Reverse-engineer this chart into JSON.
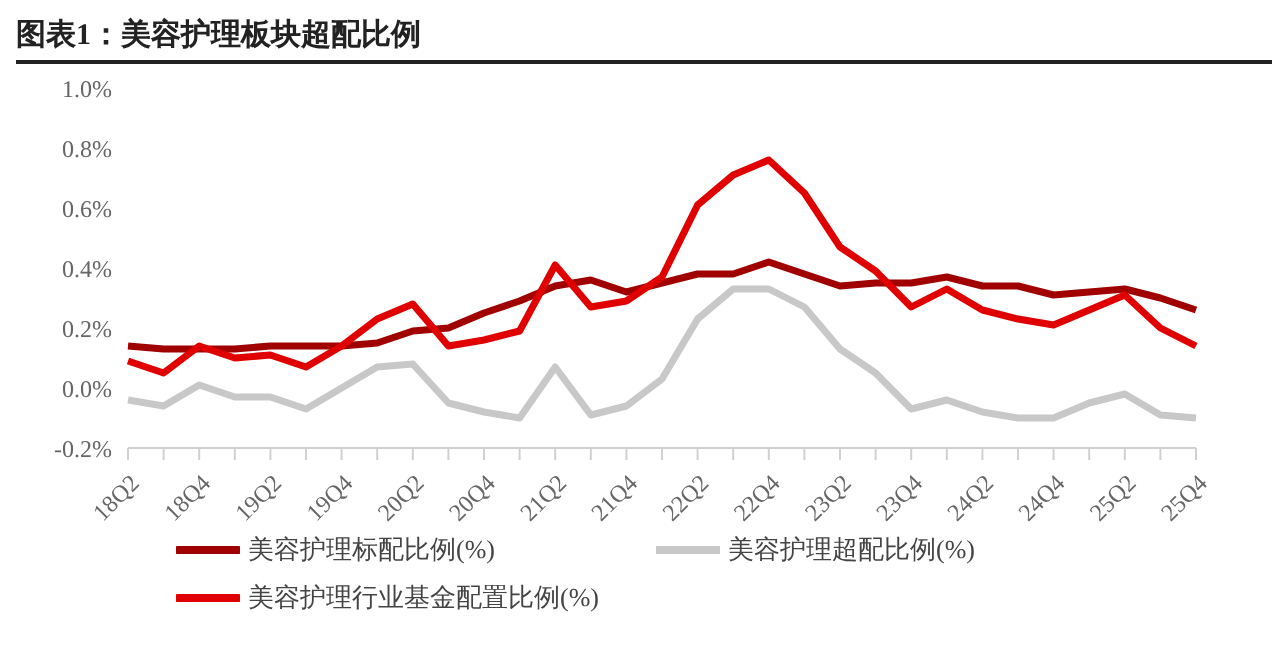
{
  "chart_data": {
    "type": "line",
    "title": "图表1：美容护理板块超配比例",
    "categories": [
      "18Q2",
      null,
      "18Q4",
      null,
      "19Q2",
      null,
      "19Q4",
      null,
      "20Q2",
      null,
      "20Q4",
      null,
      "21Q2",
      null,
      "21Q4",
      null,
      "22Q2",
      null,
      "22Q4",
      null,
      "23Q2",
      null,
      "23Q4",
      null,
      "24Q2",
      null,
      "24Q4",
      null,
      "25Q2",
      null,
      "25Q4"
    ],
    "series": [
      {
        "name": "美容护理标配比例(%)",
        "color": "#a00000",
        "values": [
          0.14,
          0.13,
          0.13,
          0.13,
          0.14,
          0.14,
          0.14,
          0.15,
          0.19,
          0.2,
          0.25,
          0.29,
          0.34,
          0.36,
          0.32,
          0.35,
          0.38,
          0.38,
          0.42,
          0.38,
          0.34,
          0.35,
          0.35,
          0.37,
          0.34,
          0.34,
          0.31,
          0.32,
          0.33,
          0.3,
          0.26
        ]
      },
      {
        "name": "美容护理超配比例(%)",
        "color": "#c8c8c8",
        "values": [
          -0.04,
          -0.06,
          0.01,
          -0.03,
          -0.03,
          -0.07,
          0.0,
          0.07,
          0.08,
          -0.05,
          -0.08,
          -0.1,
          0.07,
          -0.09,
          -0.06,
          0.03,
          0.23,
          0.33,
          0.33,
          0.27,
          0.13,
          0.05,
          -0.07,
          -0.04,
          -0.08,
          -0.1,
          -0.1,
          -0.05,
          -0.02,
          -0.09,
          -0.1
        ]
      },
      {
        "name": "美容护理行业基金配置比例(%)",
        "color": "#e00000",
        "values": [
          0.09,
          0.05,
          0.14,
          0.1,
          0.11,
          0.07,
          0.14,
          0.23,
          0.28,
          0.14,
          0.16,
          0.19,
          0.41,
          0.27,
          0.29,
          0.37,
          0.61,
          0.71,
          0.76,
          0.65,
          0.47,
          0.39,
          0.27,
          0.33,
          0.26,
          0.23,
          0.21,
          0.26,
          0.31,
          0.2,
          0.14
        ]
      }
    ],
    "ylim": [
      -0.2,
      1.0
    ],
    "yticks": [
      {
        "value": -0.2,
        "label": "-0.2%"
      },
      {
        "value": 0,
        "label": "0.0%"
      },
      {
        "value": 0.2,
        "label": "0.2%"
      },
      {
        "value": 0.4,
        "label": "0.4%"
      },
      {
        "value": 0.6,
        "label": "0.6%"
      },
      {
        "value": 0.8,
        "label": "0.8%"
      },
      {
        "value": 1.0,
        "label": "1.0%"
      }
    ],
    "grid": false,
    "legend": "bottom",
    "marker": "none",
    "line_style": "solid"
  }
}
